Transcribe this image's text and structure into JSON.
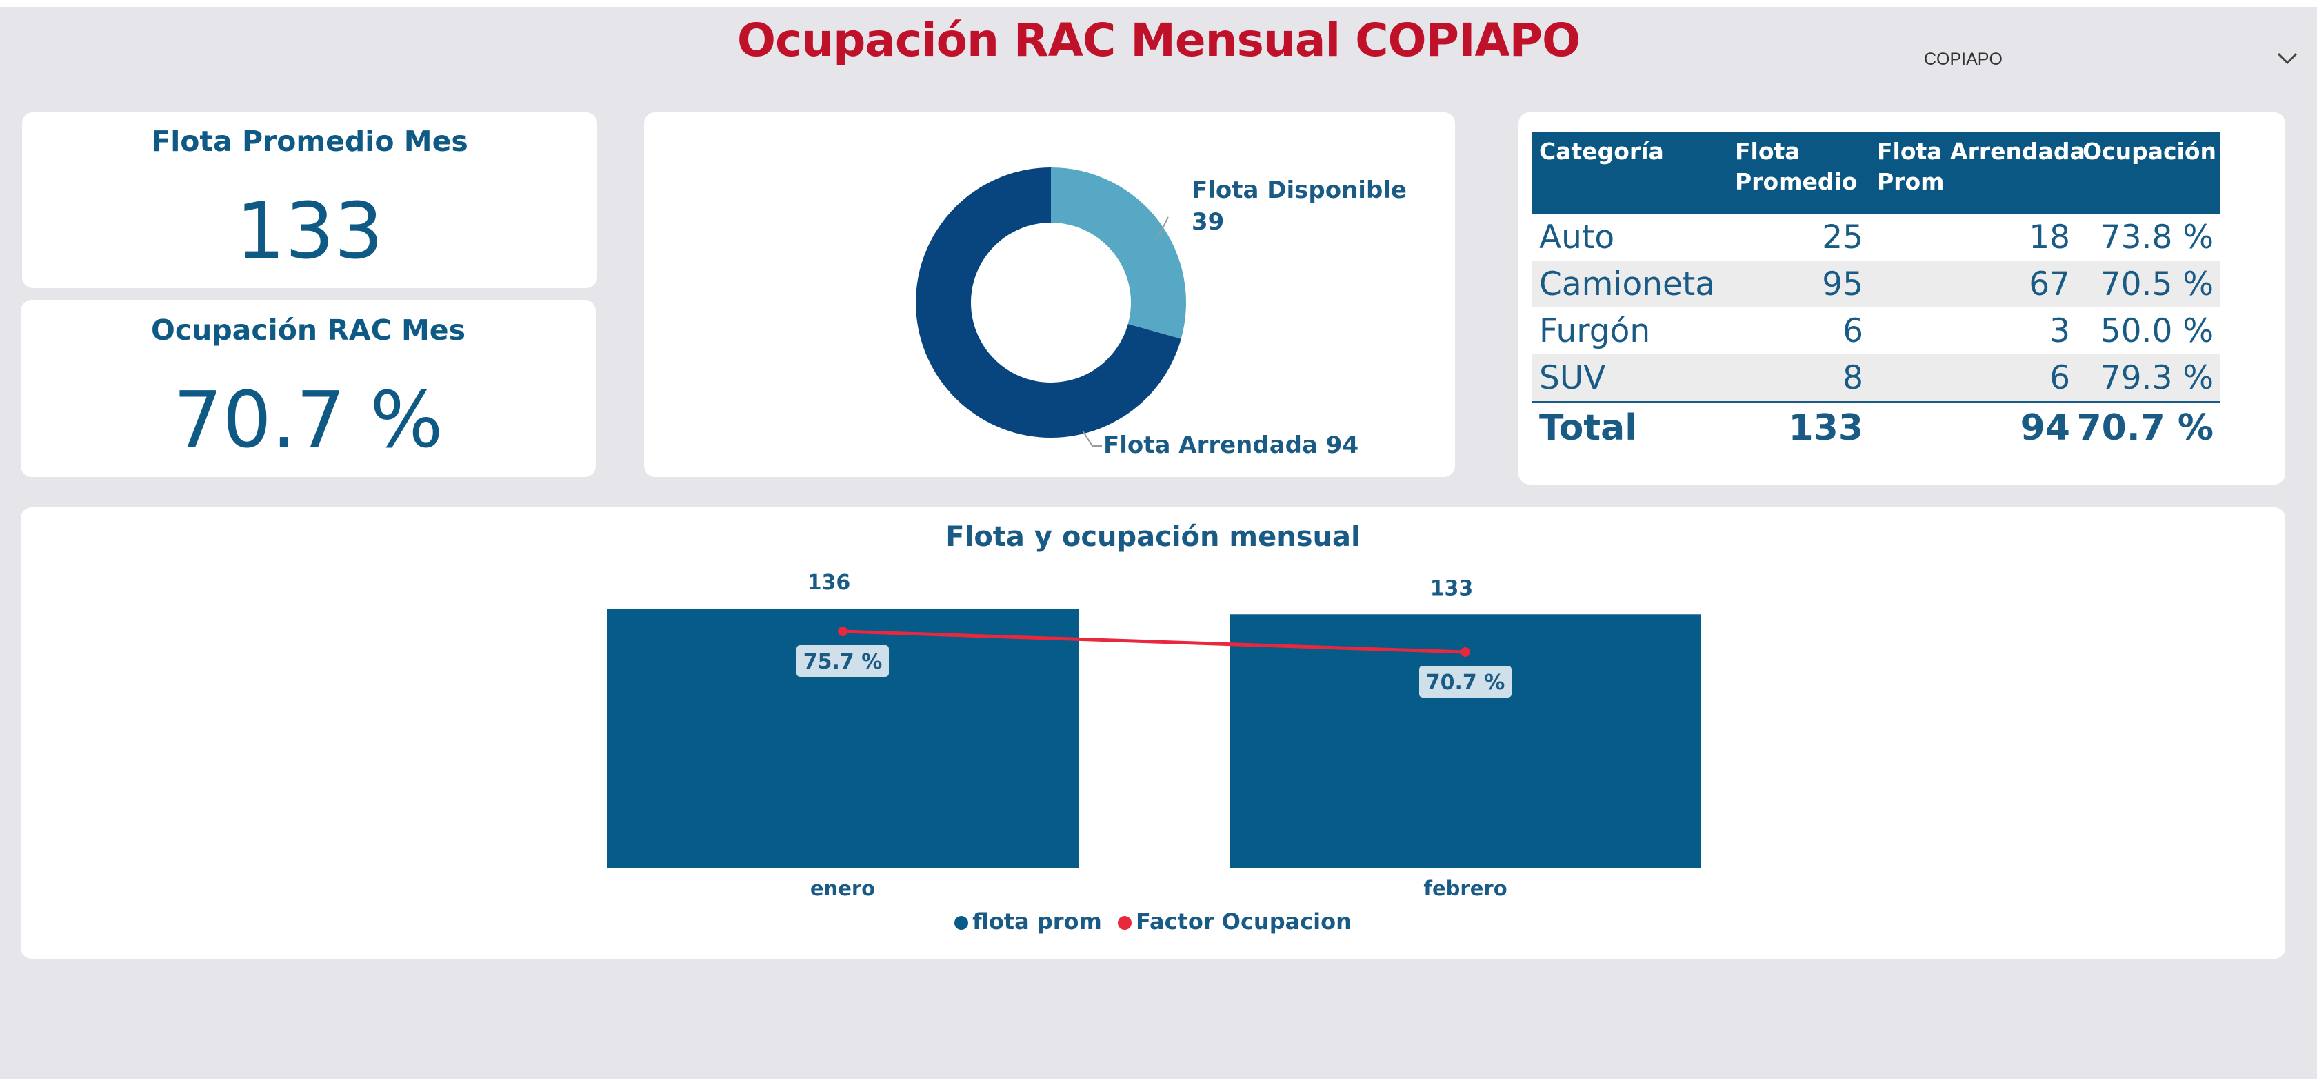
{
  "report": {
    "title": "Ocupación RAC Mensual COPIAPO"
  },
  "slicer": {
    "selected": "COPIAPO",
    "icon": "chevron-down-icon"
  },
  "kpis": {
    "flota_promedio": {
      "label": "Flota Promedio Mes",
      "value": "133"
    },
    "ocupacion": {
      "label": "Ocupación RAC Mes",
      "value": "70.7 %"
    }
  },
  "donut": {
    "slices": [
      {
        "label": "Flota Disponible",
        "value": 39,
        "display": "39",
        "color": "#56a8c4"
      },
      {
        "label": "Flota Arrendada",
        "value": 94,
        "display": "94",
        "color": "#08457f"
      }
    ]
  },
  "table": {
    "headers": [
      "Categoría",
      "Flota Promedio",
      "Flota Arrendada Prom",
      "Ocupación"
    ],
    "header_lines": [
      [
        "Categoría"
      ],
      [
        "Flota",
        "Promedio"
      ],
      [
        "Flota Arrendada",
        "Prom"
      ],
      [
        "Ocupación"
      ]
    ],
    "rows": [
      {
        "categoria": "Auto",
        "flota": "25",
        "arrendada": "18",
        "ocupacion": "73.8 %"
      },
      {
        "categoria": "Camioneta",
        "flota": "95",
        "arrendada": "67",
        "ocupacion": "70.5 %"
      },
      {
        "categoria": "Furgón",
        "flota": "6",
        "arrendada": "3",
        "ocupacion": "50.0 %"
      },
      {
        "categoria": "SUV",
        "flota": "8",
        "arrendada": "6",
        "ocupacion": "79.3 %"
      }
    ],
    "total": {
      "categoria": "Total",
      "flota": "133",
      "arrendada": "94",
      "ocupacion": "70.7 %"
    }
  },
  "chart_data": {
    "type": "bar",
    "title": "Flota y ocupación mensual",
    "categories": [
      "enero",
      "febrero"
    ],
    "series": [
      {
        "name": "flota prom",
        "type": "bar",
        "values": [
          136,
          133
        ],
        "labels": [
          "136",
          "133"
        ],
        "color": "#065b88"
      },
      {
        "name": "Factor Ocupacion",
        "type": "line",
        "values": [
          75.7,
          70.7
        ],
        "labels": [
          "75.7 %",
          "70.7 %"
        ],
        "color": "#e8283c"
      }
    ],
    "legend": "bottom-center",
    "grid": false
  }
}
